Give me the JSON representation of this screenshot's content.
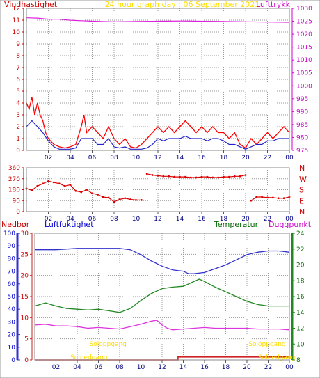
{
  "chart_data": [
    {
      "type": "line",
      "title": "24 hour graph day : 06 September 2021",
      "left_label": "Vindhastighet",
      "right_label": "Lufttrykk",
      "x_ticks": [
        "02",
        "04",
        "06",
        "08",
        "10",
        "12",
        "14",
        "16",
        "18",
        "20",
        "22",
        "00"
      ],
      "xlim": [
        0,
        24
      ],
      "ylim_left": [
        0,
        12
      ],
      "y_ticks_left": [
        "0",
        "1",
        "2",
        "3",
        "4",
        "5",
        "6",
        "7",
        "8",
        "9",
        "10",
        "11",
        "12"
      ],
      "ylim_right": [
        975,
        1030
      ],
      "y_ticks_right": [
        "975",
        "980",
        "985",
        "990",
        "995",
        "1000",
        "1005",
        "1010",
        "1015",
        "1020",
        "1025",
        "1030"
      ],
      "colors": {
        "gust": "#ff0000",
        "wind": "#2222cc",
        "pressure": "#dd22dd",
        "left_axis": "#cc0000",
        "right_axis": "#cc00cc",
        "title": "#ffdd00",
        "grid": "#999999"
      },
      "series": [
        {
          "key": "gust",
          "axis": "left",
          "x": [
            0,
            0.25,
            0.5,
            0.75,
            1,
            1.25,
            1.5,
            1.75,
            2,
            2.5,
            3,
            3.5,
            4,
            4.5,
            5,
            5.25,
            5.5,
            6,
            6.5,
            7,
            7.5,
            8,
            8.5,
            9,
            9.5,
            10,
            10.5,
            11,
            11.5,
            12,
            12.5,
            13,
            13.5,
            14,
            14.5,
            15,
            15.5,
            16,
            16.5,
            17,
            17.5,
            18,
            18.5,
            19,
            19.5,
            20,
            20.5,
            21,
            21.5,
            22,
            22.5,
            23,
            23.5,
            24
          ],
          "y": [
            4,
            3.5,
            4.5,
            3,
            4,
            3,
            2.5,
            1.5,
            1,
            0.5,
            0.3,
            0.2,
            0.3,
            0.5,
            2,
            3,
            1.5,
            2,
            1.5,
            1,
            2,
            1,
            0.5,
            1,
            0.3,
            0.2,
            0.5,
            1,
            1.5,
            2,
            1.5,
            2,
            1.5,
            2,
            2.5,
            2,
            1.5,
            2,
            1.5,
            2,
            1.5,
            1.5,
            1,
            1.5,
            0.5,
            0.2,
            1,
            0.5,
            1,
            1.5,
            1,
            1.5,
            2,
            1.5
          ]
        },
        {
          "key": "wind",
          "axis": "left",
          "x": [
            0,
            0.5,
            1,
            1.5,
            2,
            2.5,
            3,
            3.5,
            4,
            4.5,
            5,
            5.5,
            6,
            6.5,
            7,
            7.5,
            8,
            8.5,
            9,
            9.5,
            10,
            10.5,
            11,
            11.5,
            12,
            12.5,
            13,
            13.5,
            14,
            14.5,
            15,
            15.5,
            16,
            16.5,
            17,
            17.5,
            18,
            18.5,
            19,
            19.5,
            20,
            20.5,
            21,
            21.5,
            22,
            22.5,
            23,
            23.5,
            24
          ],
          "y": [
            2,
            2.5,
            2,
            1.5,
            0.8,
            0.3,
            0.1,
            0.1,
            0.1,
            0.2,
            1,
            1,
            1,
            0.5,
            0.5,
            1,
            0.3,
            0.2,
            0.3,
            0.1,
            0.1,
            0.1,
            0.2,
            0.5,
            1,
            0.8,
            1,
            1,
            1,
            1.2,
            1,
            1,
            1,
            0.8,
            1,
            1,
            0.8,
            0.5,
            0.5,
            0.3,
            0.1,
            0.3,
            0.5,
            0.5,
            0.8,
            0.8,
            1,
            1,
            1
          ]
        },
        {
          "key": "pressure",
          "axis": "right",
          "x": [
            0,
            1,
            2,
            3,
            4,
            6,
            8,
            10,
            12,
            14,
            16,
            18,
            20,
            22,
            24
          ],
          "y": [
            1026.3,
            1026.2,
            1025.8,
            1025.8,
            1025.4,
            1025.0,
            1024.8,
            1024.9,
            1025.0,
            1025.1,
            1025.0,
            1024.9,
            1024.8,
            1024.7,
            1024.6
          ]
        }
      ]
    },
    {
      "type": "scatter",
      "x_ticks": [
        "02",
        "04",
        "06",
        "08",
        "10",
        "12",
        "14",
        "16",
        "18",
        "20",
        "22",
        "00"
      ],
      "xlim": [
        0,
        24
      ],
      "ylim": [
        0,
        360
      ],
      "y_ticks": [
        "0",
        "90",
        "180",
        "270",
        "360"
      ],
      "right_labels": [
        "N",
        "W",
        "S",
        "E",
        "N"
      ],
      "colors": {
        "points": "#dd0000",
        "axis": "#cc0000",
        "grid": "#999999"
      },
      "series": [
        {
          "key": "direction",
          "x": [
            0,
            0.5,
            1,
            1.5,
            2,
            2.5,
            3,
            3.5,
            4,
            4.5,
            5,
            5.5,
            6,
            6.5,
            7,
            7.5,
            8,
            8.5,
            9,
            9.5,
            10,
            10.5,
            11,
            11.5,
            12,
            12.5,
            13,
            13.5,
            14,
            14.5,
            15,
            15.5,
            16,
            16.5,
            17,
            17.5,
            18,
            18.5,
            19,
            19.5,
            20,
            20.5,
            21,
            21.5,
            22,
            22.5,
            23,
            23.5,
            24
          ],
          "y": [
            190,
            175,
            210,
            230,
            250,
            240,
            230,
            210,
            220,
            170,
            160,
            180,
            150,
            140,
            120,
            115,
            80,
            100,
            110,
            100,
            95,
            95,
            310,
            300,
            295,
            290,
            290,
            285,
            285,
            285,
            280,
            280,
            285,
            285,
            280,
            280,
            285,
            285,
            290,
            290,
            300,
            90,
            120,
            120,
            115,
            115,
            110,
            110,
            120
          ]
        }
      ]
    },
    {
      "type": "line",
      "left_label_1": "Nedbør",
      "left_label_2": "Luftfuktighet",
      "right_label_1": "Temperatur",
      "right_label_2": "Duggpunkt",
      "annotations": [
        "Soloppgang",
        "Soloppgang",
        "Solnedgang",
        "Solnedgang"
      ],
      "x_ticks": [
        "02",
        "04",
        "06",
        "08",
        "10",
        "12",
        "14",
        "16",
        "18",
        "20",
        "22",
        "00"
      ],
      "xlim": [
        0,
        24
      ],
      "ylim_precip": [
        0,
        30
      ],
      "y_ticks_precip": [
        "0",
        "5",
        "10",
        "15",
        "20",
        "25",
        "30"
      ],
      "ylim_humidity": [
        0,
        100
      ],
      "y_ticks_humidity": [
        "0",
        "10",
        "20",
        "30",
        "40",
        "50",
        "60",
        "70",
        "80",
        "90",
        "100"
      ],
      "ylim_temp": [
        8,
        24
      ],
      "y_ticks_temp": [
        "8",
        "10",
        "12",
        "14",
        "16",
        "18",
        "20",
        "22",
        "24"
      ],
      "colors": {
        "humidity": "#3333cc",
        "temperature": "#228822",
        "dewpoint": "#dd33dd",
        "precip": "#cc2222",
        "nedbor_label": "#cc0000",
        "humidity_label": "#0000cc",
        "temp_label": "#006600",
        "dew_label": "#cc00cc",
        "sun": "#ffdd00",
        "grid": "#999999"
      },
      "series": [
        {
          "key": "humidity",
          "axis": "humidity",
          "x": [
            0,
            2,
            4,
            6,
            8,
            9,
            10,
            11,
            12,
            13,
            14,
            14.5,
            15,
            16,
            17,
            18,
            19,
            20,
            21,
            22,
            23,
            24
          ],
          "y": [
            87,
            87,
            88,
            88,
            88,
            87,
            83,
            78,
            74,
            71,
            70,
            68,
            68,
            69,
            72,
            75,
            79,
            83,
            85,
            86,
            86,
            85
          ]
        },
        {
          "key": "temperature",
          "axis": "temp",
          "x": [
            0,
            1,
            2,
            3,
            4,
            5,
            6,
            7,
            8,
            9,
            10,
            11,
            12,
            13,
            14,
            15,
            15.5,
            16,
            17,
            18,
            19,
            20,
            21,
            22,
            23,
            24
          ],
          "y": [
            14.8,
            15.2,
            14.8,
            14.5,
            14.4,
            14.3,
            14.4,
            14.2,
            14.0,
            14.5,
            15.5,
            16.4,
            17.0,
            17.2,
            17.3,
            17.9,
            18.2,
            17.9,
            17.2,
            16.6,
            16.0,
            15.4,
            15.0,
            14.8,
            14.8,
            14.8
          ]
        },
        {
          "key": "dewpoint",
          "axis": "temp",
          "x": [
            0,
            1,
            2,
            3,
            4,
            5,
            6,
            7,
            8,
            9,
            10,
            11,
            11.5,
            12,
            12.5,
            13,
            14,
            15,
            16,
            17,
            18,
            19,
            20,
            21,
            22,
            23,
            24
          ],
          "y": [
            12.4,
            12.5,
            12.3,
            12.3,
            12.2,
            12.0,
            12.1,
            12.0,
            11.9,
            12.2,
            12.5,
            12.9,
            13.0,
            12.4,
            12.0,
            11.8,
            11.9,
            12.0,
            12.1,
            12.0,
            12.0,
            12.0,
            12.0,
            11.9,
            11.9,
            11.9,
            11.8
          ]
        },
        {
          "key": "precip",
          "axis": "precip",
          "x": [
            0,
            13.5,
            13.5,
            24
          ],
          "y": [
            0,
            0,
            0.7,
            0.7
          ]
        }
      ]
    }
  ]
}
